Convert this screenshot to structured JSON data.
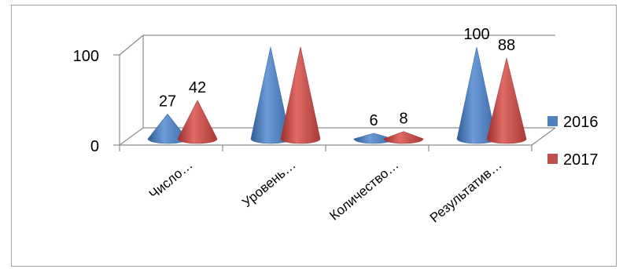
{
  "chart_data": {
    "type": "bar",
    "subtype": "3d-cone",
    "categories": [
      "Число…",
      "Уровень…",
      "Количество…",
      "Результатив…"
    ],
    "series": [
      {
        "name": "2016",
        "color": "#4f81bd",
        "values": [
          27,
          100,
          6,
          100
        ]
      },
      {
        "name": "2017",
        "color": "#c0504d",
        "values": [
          42,
          100,
          8,
          88
        ]
      }
    ],
    "data_labels": [
      [
        "27",
        "",
        "6",
        "100"
      ],
      [
        "42",
        "",
        "8",
        "88"
      ]
    ],
    "y_ticks": [
      "0",
      "100"
    ],
    "ylim": [
      0,
      100
    ],
    "grid": true,
    "legend_position": "right"
  }
}
